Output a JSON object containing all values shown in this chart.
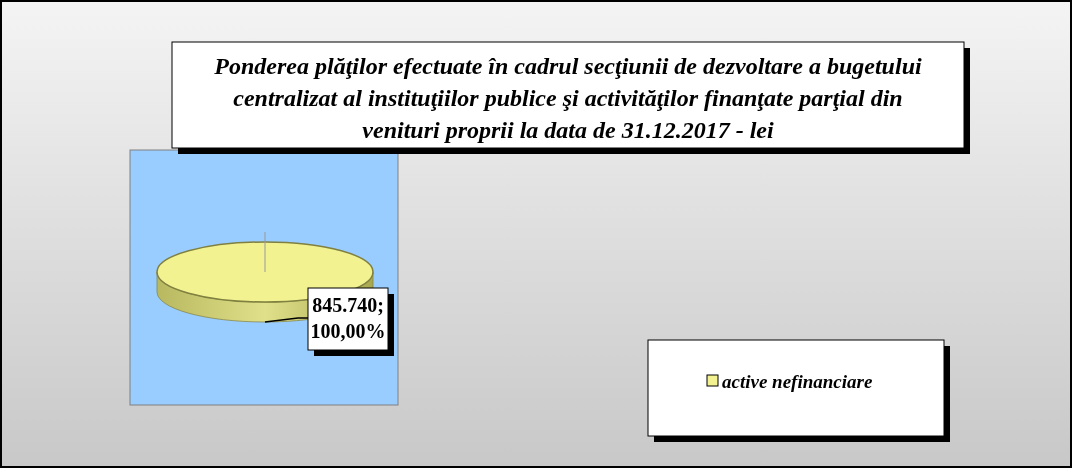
{
  "chart_data": {
    "type": "pie",
    "title": "Ponderea plăţilor efectuate în cadrul secţiunii de dezvoltare a bugetului centralizat al instituţiilor publice şi activităţilor finanţate parţial din venituri proprii la data de 31.12.2017 - lei",
    "categories": [
      "active nefinanciare"
    ],
    "values": [
      100
    ],
    "colors": [
      "#f2f291"
    ],
    "value_labels": [
      "845.740; 100,00%"
    ],
    "legend": "right"
  }
}
